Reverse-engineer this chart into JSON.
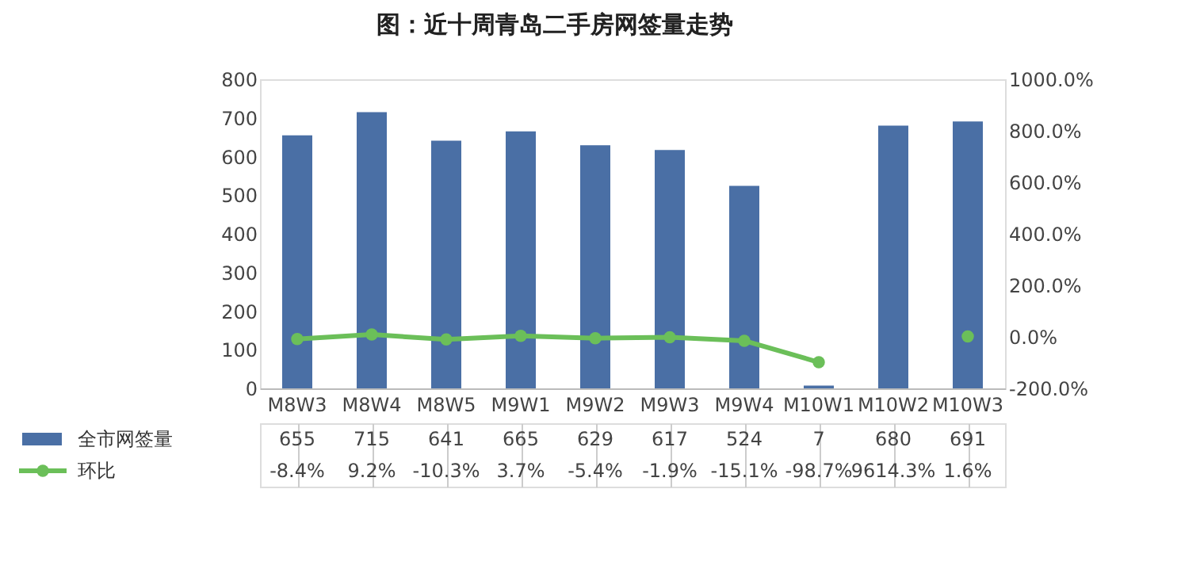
{
  "chart_data": {
    "type": "bar",
    "title": "图：近十周青岛二手房网签量走势",
    "categories": [
      "M8W3",
      "M8W4",
      "M8W5",
      "M9W1",
      "M9W2",
      "M9W3",
      "M9W4",
      "M10W1",
      "M10W2",
      "M10W3"
    ],
    "series": [
      {
        "name": "全市网签量",
        "color": "#4a6fa5",
        "values": [
          655,
          715,
          641,
          665,
          629,
          617,
          524,
          7,
          680,
          691
        ],
        "value_labels": [
          "655",
          "715",
          "641",
          "665",
          "629",
          "617",
          "524",
          "7",
          "680",
          "691"
        ]
      },
      {
        "name": "环比",
        "type": "line",
        "axis": "y2",
        "color": "#6bbf59",
        "values": [
          -8.4,
          9.2,
          -10.3,
          3.7,
          -5.4,
          -1.9,
          -15.1,
          -98.7,
          null,
          1.6
        ],
        "value_labels": [
          "-8.4%",
          "9.2%",
          "-10.3%",
          "3.7%",
          "-5.4%",
          "-1.9%",
          "-15.1%",
          "-98.7%",
          "9614.3%",
          "1.6%"
        ]
      }
    ],
    "ylim": [
      0,
      800
    ],
    "yticks": [
      0,
      100,
      200,
      300,
      400,
      500,
      600,
      700,
      800
    ],
    "y2lim": [
      -200,
      1000
    ],
    "y2ticks": [
      {
        "value": -200,
        "label": "-200.0%"
      },
      {
        "value": 0,
        "label": "0.0%"
      },
      {
        "value": 200,
        "label": "200.0%"
      },
      {
        "value": 400,
        "label": "400.0%"
      },
      {
        "value": 600,
        "label": "600.0%"
      },
      {
        "value": 800,
        "label": "800.0%"
      },
      {
        "value": 1000,
        "label": "1000.0%"
      }
    ],
    "grid": false,
    "legend": "bottom",
    "marker": "circle",
    "line_style": "solid"
  }
}
